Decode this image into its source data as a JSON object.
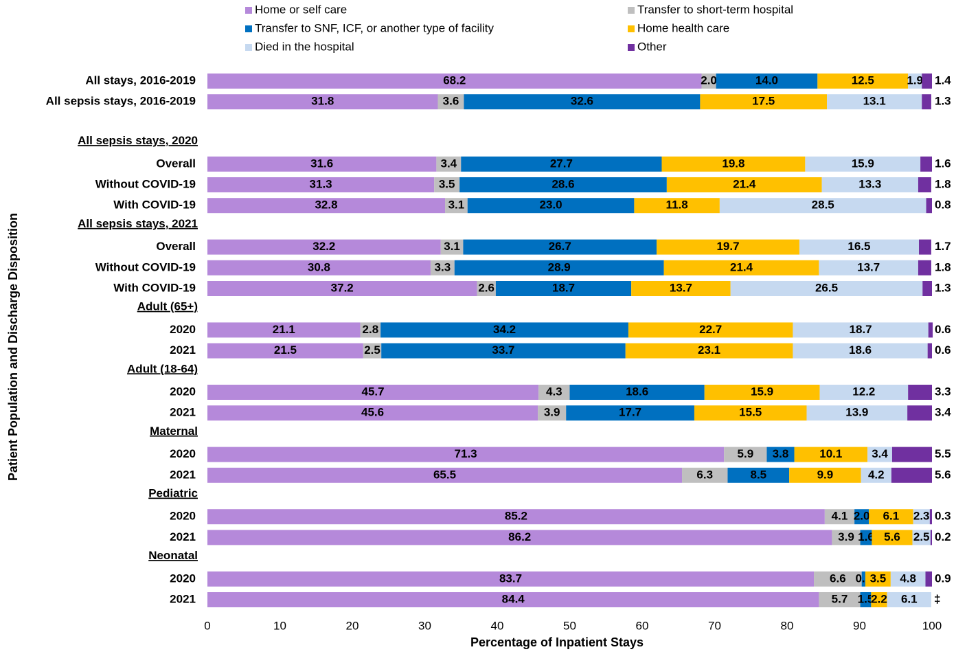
{
  "chart_data": {
    "type": "stacked-barh",
    "x_label": "Percentage of Inpatient Stays",
    "y_label": "Patient Population and Discharge Disposition",
    "xlim": [
      0,
      100
    ],
    "xticks": [
      0,
      10,
      20,
      30,
      40,
      50,
      60,
      70,
      80,
      90,
      100
    ],
    "categories": [
      "All stays, 2016-2019",
      "All sepsis stays, 2016-2019",
      null,
      "All sepsis stays, 2020",
      "Overall",
      "Without COVID-19",
      "With COVID-19",
      "All sepsis stays, 2021",
      "Overall",
      "Without COVID-19",
      "With COVID-19",
      "Adult (65+)",
      "2020",
      "2021",
      "Adult (18-64)",
      "2020",
      "2021",
      "Maternal",
      "2020",
      "2021",
      "Pediatric",
      "2020",
      "2021",
      "Neonatal",
      "2020",
      "2021"
    ],
    "series": [
      {
        "name": "Home or self care",
        "color": "#b589da",
        "values": [
          68.2,
          31.8,
          null,
          null,
          31.6,
          31.3,
          32.8,
          null,
          32.2,
          30.8,
          37.2,
          null,
          21.1,
          21.5,
          null,
          45.7,
          45.6,
          null,
          71.3,
          65.5,
          null,
          85.2,
          86.2,
          null,
          83.7,
          84.4
        ]
      },
      {
        "name": "Transfer to short-term hospital",
        "color": "#bfbfbf",
        "values": [
          2.0,
          3.6,
          null,
          null,
          3.4,
          3.5,
          3.1,
          null,
          3.1,
          3.3,
          2.6,
          null,
          2.8,
          2.5,
          null,
          4.3,
          3.9,
          null,
          5.9,
          6.3,
          null,
          4.1,
          3.9,
          null,
          6.6,
          5.7
        ],
        "value_labels": [
          "2.0",
          null,
          null,
          null,
          null,
          null,
          null,
          null,
          null,
          null,
          null,
          null,
          null,
          null,
          null,
          null,
          null,
          null,
          null,
          null,
          null,
          null,
          null,
          null,
          null,
          null
        ]
      },
      {
        "name": "Transfer to SNF, ICF, or another type of facility",
        "color": "#0070c0",
        "values": [
          14.0,
          32.6,
          null,
          null,
          27.7,
          28.6,
          23.0,
          null,
          26.7,
          28.9,
          18.7,
          null,
          34.2,
          33.7,
          null,
          18.6,
          17.7,
          null,
          3.8,
          8.5,
          null,
          2.0,
          1.6,
          null,
          0.5,
          1.5
        ],
        "value_labels": [
          "14.0",
          null,
          null,
          null,
          null,
          null,
          "23.0",
          null,
          null,
          null,
          null,
          null,
          null,
          null,
          null,
          null,
          null,
          null,
          null,
          null,
          null,
          "2.0",
          null,
          null,
          null,
          null
        ]
      },
      {
        "name": "Home health care",
        "color": "#ffc000",
        "values": [
          12.5,
          17.5,
          null,
          null,
          19.8,
          21.4,
          11.8,
          null,
          19.7,
          21.4,
          13.7,
          null,
          22.7,
          23.1,
          null,
          15.9,
          15.5,
          null,
          10.1,
          9.9,
          null,
          6.1,
          5.6,
          null,
          3.5,
          2.2
        ]
      },
      {
        "name": "Died in the hospital",
        "color": "#c6d9f0",
        "values": [
          1.9,
          13.1,
          null,
          null,
          15.9,
          13.3,
          28.5,
          null,
          16.5,
          13.7,
          26.5,
          null,
          18.7,
          18.6,
          null,
          12.2,
          13.9,
          null,
          3.4,
          4.2,
          null,
          2.3,
          2.5,
          null,
          4.8,
          6.1
        ]
      },
      {
        "name": "Other",
        "color": "#7030a0",
        "label_position": "outside",
        "values": [
          1.4,
          1.3,
          null,
          null,
          1.6,
          1.8,
          0.8,
          null,
          1.7,
          1.8,
          1.3,
          null,
          0.6,
          0.6,
          null,
          3.3,
          3.4,
          null,
          5.5,
          5.6,
          null,
          0.3,
          0.2,
          null,
          0.9,
          null
        ],
        "value_labels": [
          null,
          null,
          null,
          null,
          null,
          null,
          null,
          null,
          null,
          null,
          null,
          null,
          null,
          null,
          null,
          null,
          null,
          null,
          null,
          null,
          null,
          null,
          null,
          null,
          null,
          "‡"
        ]
      }
    ]
  }
}
